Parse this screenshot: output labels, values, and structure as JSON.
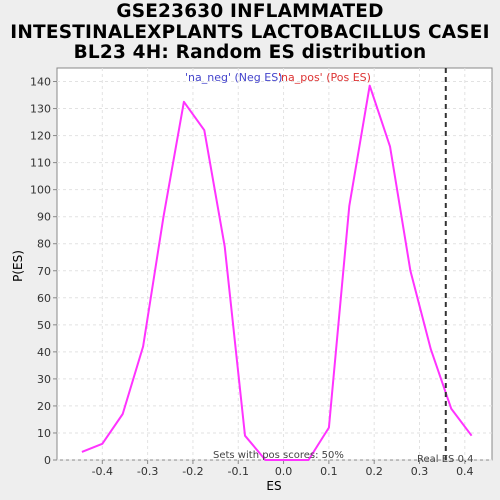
{
  "chart_data": {
    "type": "line",
    "title_lines": [
      "GSE23630 INFLAMMATED",
      "INTESTINALEXPLANTS LACTOBACILLUS CASEI",
      "BL23 4H: Random ES distribution"
    ],
    "xlabel": "ES",
    "ylabel": "P(ES)",
    "xlim": [
      -0.5,
      0.46
    ],
    "ylim": [
      0,
      145
    ],
    "x_ticks": [
      -0.4,
      -0.3,
      -0.2,
      -0.1,
      0.0,
      0.1,
      0.2,
      0.3,
      0.4
    ],
    "x_tick_labels": [
      "-0.4",
      "-0.3",
      "-0.2",
      "-0.1",
      "0.0",
      "0.1",
      "0.2",
      "0.3",
      "0.4"
    ],
    "y_ticks": [
      0,
      10,
      20,
      30,
      40,
      50,
      60,
      70,
      80,
      90,
      100,
      110,
      120,
      130,
      140
    ],
    "y_tick_labels": [
      "0",
      "10",
      "20",
      "30",
      "40",
      "50",
      "60",
      "70",
      "80",
      "90",
      "100",
      "110",
      "120",
      "130",
      "140"
    ],
    "grid": true,
    "legend_position": "top-center",
    "legend": [
      {
        "label": "'na_neg' (Neg ES)",
        "color": "#4444cc"
      },
      {
        "label": "'na_pos' (Pos ES)",
        "color": "#dd3333"
      }
    ],
    "series": [
      {
        "color": "#ff33ff",
        "points": [
          [
            -0.445,
            3
          ],
          [
            -0.4,
            6
          ],
          [
            -0.355,
            17
          ],
          [
            -0.31,
            42
          ],
          [
            -0.265,
            90
          ],
          [
            -0.22,
            132.5
          ],
          [
            -0.175,
            122
          ],
          [
            -0.13,
            79
          ],
          [
            -0.085,
            9
          ],
          [
            -0.04,
            0
          ],
          [
            0.01,
            0
          ],
          [
            0.055,
            0
          ],
          [
            0.1,
            12
          ],
          [
            0.145,
            94
          ],
          [
            0.19,
            138.5
          ],
          [
            0.235,
            116
          ],
          [
            0.28,
            70
          ],
          [
            0.325,
            41
          ],
          [
            0.37,
            19
          ],
          [
            0.415,
            9
          ]
        ]
      }
    ],
    "real_es": 0.358,
    "real_es_label": "Real ES 0.4",
    "pos_scores_label": "Sets with pos scores: 50%"
  }
}
